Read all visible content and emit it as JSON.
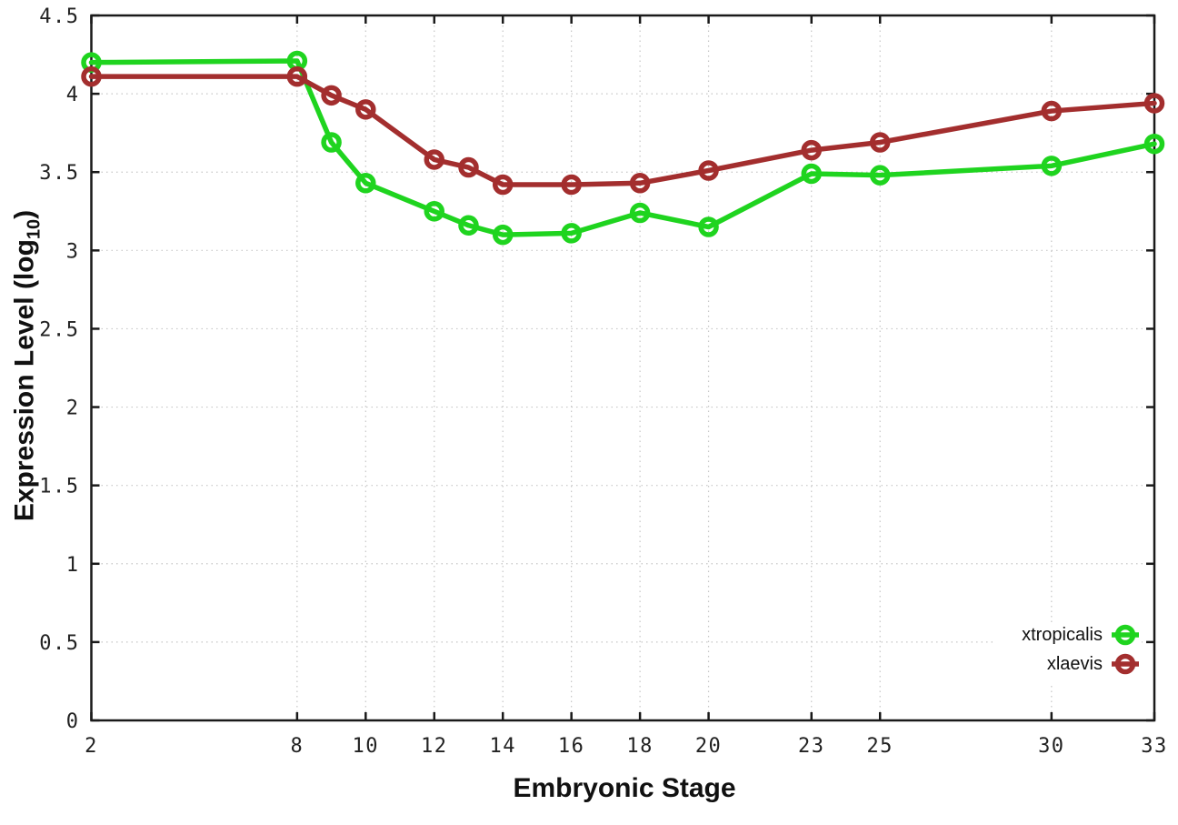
{
  "chart_data": {
    "type": "line",
    "title": "",
    "xlabel": "Embryonic Stage",
    "ylabel": "Expression Level (log10)",
    "ylabel_parts": {
      "prefix": "Expression Level (log",
      "subscript": "10",
      "suffix": ")"
    },
    "x": [
      2,
      8,
      9,
      10,
      12,
      13,
      14,
      16,
      18,
      20,
      23,
      25,
      30,
      33
    ],
    "series": [
      {
        "name": "xtropicalis",
        "color": "#1fd41f",
        "values": [
          4.2,
          4.21,
          3.69,
          3.43,
          3.25,
          3.16,
          3.1,
          3.11,
          3.24,
          3.15,
          3.49,
          3.48,
          3.54,
          3.68
        ]
      },
      {
        "name": "xlaevis",
        "color": "#a32e2e",
        "values": [
          4.11,
          4.11,
          3.99,
          3.9,
          3.58,
          3.53,
          3.42,
          3.42,
          3.43,
          3.51,
          3.64,
          3.69,
          3.89,
          3.94
        ]
      }
    ],
    "xticks": [
      2,
      8,
      10,
      12,
      14,
      16,
      18,
      20,
      23,
      25,
      30,
      33
    ],
    "xtick_labels": [
      "2",
      "8",
      "10",
      "12",
      "14",
      "16",
      "18",
      "20",
      "23",
      "25",
      "30",
      "33"
    ],
    "yticks": [
      0,
      0.5,
      1,
      1.5,
      2,
      2.5,
      3,
      3.5,
      4,
      4.5
    ],
    "ytick_labels": [
      "0",
      "0.5",
      "1",
      "1.5",
      "2",
      "2.5",
      "3",
      "3.5",
      "4",
      "4.5"
    ],
    "xlim": [
      2,
      33
    ],
    "ylim": [
      0,
      4.5
    ],
    "grid": true,
    "marker": "open-circle",
    "legend_position": "inside-bottom-right",
    "colors": {
      "axis": "#1a1a1a",
      "grid": "#c6c6c6",
      "tick_text": "#222222",
      "background": "#ffffff"
    }
  },
  "legend": {
    "items": [
      {
        "label": "xtropicalis"
      },
      {
        "label": "xlaevis"
      }
    ]
  },
  "axes": {
    "x_title": "Embryonic Stage",
    "y_title_prefix": "Expression Level (log",
    "y_title_sub": "10",
    "y_title_suffix": ")"
  }
}
